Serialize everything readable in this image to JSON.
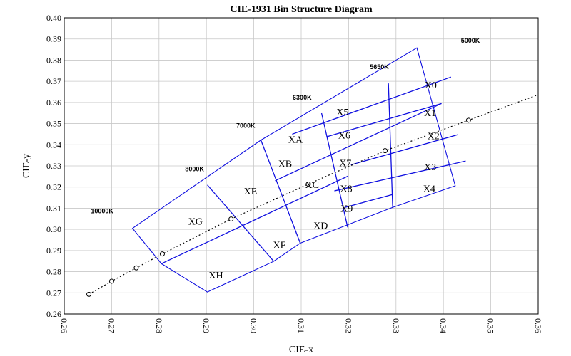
{
  "chart_data": {
    "type": "scatter",
    "title": "CIE-1931 Bin Structure Diagram",
    "xlabel": "CIE-x",
    "ylabel": "CIE-y",
    "xlim": [
      0.26,
      0.36
    ],
    "ylim": [
      0.26,
      0.4
    ],
    "x_ticks": [
      "0.26",
      "0.27",
      "0.28",
      "0.29",
      "0.30",
      "0.31",
      "0.32",
      "0.33",
      "0.34",
      "0.35",
      "0.36"
    ],
    "y_ticks": [
      "0.26",
      "0.27",
      "0.28",
      "0.29",
      "0.30",
      "0.31",
      "0.32",
      "0.33",
      "0.34",
      "0.35",
      "0.36",
      "0.37",
      "0.38",
      "0.39",
      "0.40"
    ],
    "grid": true,
    "series": [
      {
        "values": [
          [
            0.2652,
            0.2693
          ],
          [
            0.27,
            0.2755
          ],
          [
            0.2752,
            0.2818
          ],
          [
            0.2807,
            0.2884
          ],
          [
            0.2952,
            0.3049
          ],
          [
            0.3115,
            0.3214
          ],
          [
            0.3277,
            0.3372
          ],
          [
            0.3453,
            0.3516
          ]
        ]
      }
    ],
    "bin_outline": [
      [
        0.2744,
        0.3005
      ],
      [
        0.3015,
        0.3422
      ],
      [
        0.3344,
        0.3858
      ],
      [
        0.3425,
        0.3206
      ],
      [
        0.3293,
        0.3104
      ],
      [
        0.3098,
        0.2935
      ],
      [
        0.3042,
        0.2849
      ],
      [
        0.2902,
        0.2704
      ],
      [
        0.2805,
        0.2838
      ]
    ],
    "bin_lines": [
      [
        [
          0.2902,
          0.321
        ],
        [
          0.3042,
          0.2849
        ]
      ],
      [
        [
          0.3015,
          0.3422
        ],
        [
          0.3098,
          0.2935
        ]
      ],
      [
        [
          0.3143,
          0.3549
        ],
        [
          0.3198,
          0.301
        ]
      ],
      [
        [
          0.3284,
          0.369
        ],
        [
          0.3293,
          0.3104
        ]
      ],
      [
        [
          0.2805,
          0.2838
        ],
        [
          0.3199,
          0.3252
        ]
      ],
      [
        [
          0.3045,
          0.323
        ],
        [
          0.3396,
          0.3595
        ]
      ],
      [
        [
          0.3081,
          0.345
        ],
        [
          0.3416,
          0.372
        ]
      ],
      [
        [
          0.3154,
          0.3438
        ],
        [
          0.3396,
          0.3595
        ]
      ],
      [
        [
          0.3205,
          0.3305
        ],
        [
          0.3431,
          0.3448
        ]
      ],
      [
        [
          0.317,
          0.3182
        ],
        [
          0.3447,
          0.3323
        ]
      ],
      [
        [
          0.3191,
          0.3103
        ],
        [
          0.3293,
          0.3165
        ]
      ]
    ],
    "bins": [
      {
        "label": "X0",
        "x": 0.3373,
        "y": 0.3683
      },
      {
        "label": "X1",
        "x": 0.3372,
        "y": 0.3553
      },
      {
        "label": "X2",
        "x": 0.3379,
        "y": 0.3443
      },
      {
        "label": "X3",
        "x": 0.3372,
        "y": 0.3297
      },
      {
        "label": "X4",
        "x": 0.337,
        "y": 0.3194
      },
      {
        "label": "X5",
        "x": 0.3187,
        "y": 0.3556
      },
      {
        "label": "X6",
        "x": 0.3191,
        "y": 0.3446
      },
      {
        "label": "X7",
        "x": 0.3193,
        "y": 0.3315
      },
      {
        "label": "X8",
        "x": 0.3195,
        "y": 0.3194
      },
      {
        "label": "X9",
        "x": 0.3196,
        "y": 0.31
      },
      {
        "label": "XA",
        "x": 0.3088,
        "y": 0.3427
      },
      {
        "label": "XB",
        "x": 0.3066,
        "y": 0.3312
      },
      {
        "label": "XC",
        "x": 0.3123,
        "y": 0.3212
      },
      {
        "label": "XD",
        "x": 0.3141,
        "y": 0.3019
      },
      {
        "label": "XE",
        "x": 0.2993,
        "y": 0.3183
      },
      {
        "label": "XF",
        "x": 0.3054,
        "y": 0.2928
      },
      {
        "label": "XG",
        "x": 0.2877,
        "y": 0.3039
      },
      {
        "label": "XH",
        "x": 0.292,
        "y": 0.2785
      }
    ],
    "cct_labels": [
      {
        "label": "10000K",
        "x": 0.268,
        "y": 0.3087
      },
      {
        "label": "8000K",
        "x": 0.2875,
        "y": 0.3285
      },
      {
        "label": "7000K",
        "x": 0.2983,
        "y": 0.349
      },
      {
        "label": "6300K",
        "x": 0.3102,
        "y": 0.3623
      },
      {
        "label": "5650K",
        "x": 0.3265,
        "y": 0.3767
      },
      {
        "label": "5000K",
        "x": 0.3457,
        "y": 0.3893
      }
    ]
  }
}
